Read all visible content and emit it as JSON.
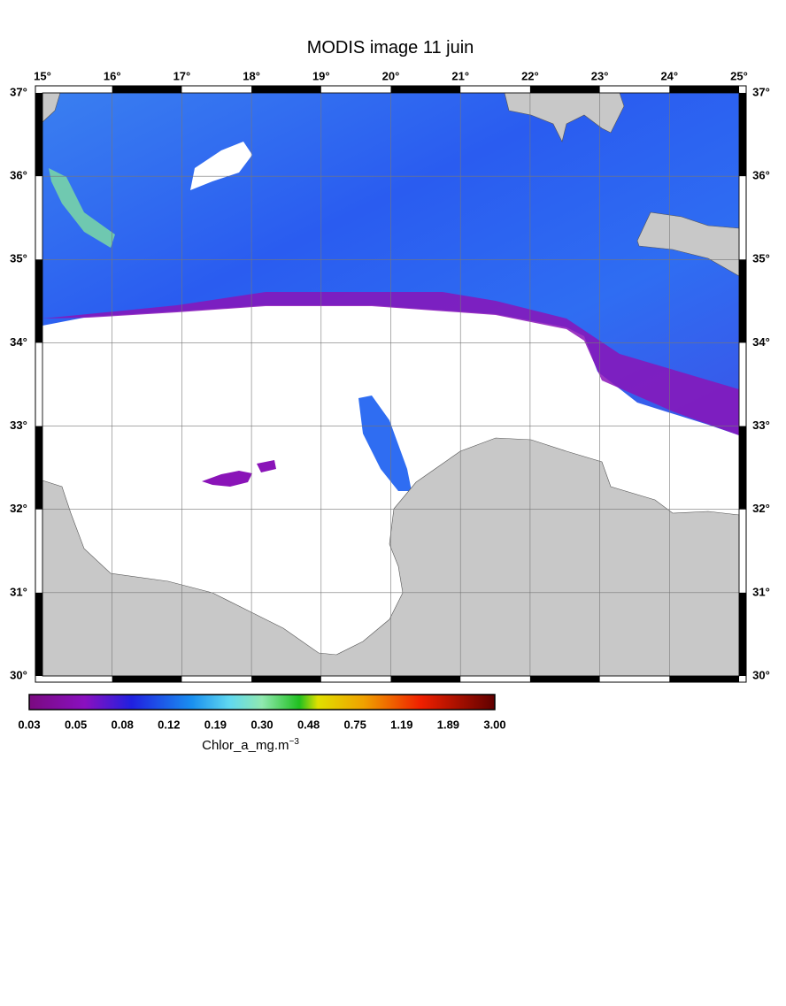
{
  "title": "MODIS image 11 juin",
  "lon_labels": [
    "15°",
    "16°",
    "17°",
    "18°",
    "19°",
    "20°",
    "21°",
    "22°",
    "23°",
    "24°",
    "25°"
  ],
  "lat_labels": [
    "37°",
    "36°",
    "35°",
    "34°",
    "33°",
    "32°",
    "31°",
    "30°"
  ],
  "colorbar": {
    "labels": [
      "0.03",
      "0.05",
      "0.08",
      "0.12",
      "0.19",
      "0.30",
      "0.48",
      "0.75",
      "1.19",
      "1.89",
      "3.00"
    ],
    "label": "Chlor_a_mg.m",
    "label_exponent": "−3"
  }
}
